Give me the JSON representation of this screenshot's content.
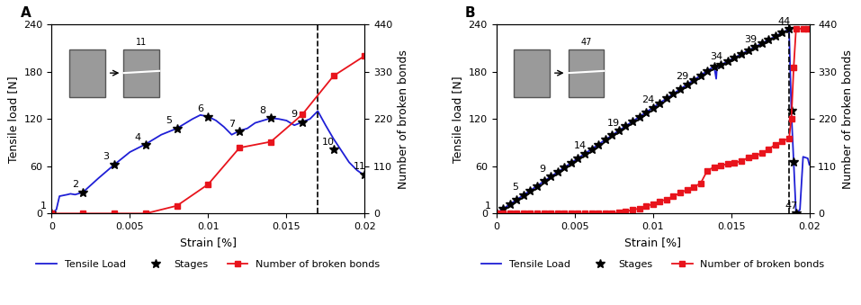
{
  "chart_data": [
    {
      "type": "line",
      "title": "A",
      "x_label": "Strain [%]",
      "y_label": "Tensile load [N]",
      "y2_label": "Number of broken bonds",
      "xlim": [
        0,
        0.02
      ],
      "xticks": [
        0,
        0.005,
        0.01,
        0.015,
        0.02
      ],
      "ylim": [
        0,
        240
      ],
      "yticks": [
        0,
        60,
        120,
        180,
        240
      ],
      "y2lim": [
        0,
        440
      ],
      "y2ticks": [
        0,
        110,
        220,
        330,
        440
      ],
      "legend": "below",
      "dashed_line_x": 0.017,
      "inset_label": "11",
      "series": [
        {
          "name": "Tensile Load",
          "color": "#1f1fd6",
          "type": "line",
          "marker": "none",
          "line_style": "solid",
          "x": [
            0,
            0.0003,
            0.0005,
            0.001,
            0.0012,
            0.0015,
            0.002,
            0.003,
            0.004,
            0.005,
            0.006,
            0.007,
            0.008,
            0.009,
            0.0095,
            0.01,
            0.0105,
            0.011,
            0.0115,
            0.012,
            0.0125,
            0.013,
            0.014,
            0.0145,
            0.015,
            0.0155,
            0.016,
            0.0165,
            0.017,
            0.0175,
            0.018,
            0.0185,
            0.019,
            0.0195,
            0.02
          ],
          "values": [
            0,
            5,
            22,
            24,
            25,
            24,
            27,
            45,
            62,
            78,
            88,
            100,
            108,
            120,
            125,
            123,
            118,
            110,
            100,
            105,
            108,
            115,
            121,
            120,
            118,
            112,
            116,
            120,
            130,
            112,
            95,
            80,
            65,
            55,
            48
          ]
        },
        {
          "name": "Stages",
          "color": "#000000",
          "type": "scatter",
          "marker": "star",
          "line_style": "none",
          "x": [
            0,
            0.002,
            0.004,
            0.006,
            0.008,
            0.01,
            0.012,
            0.014,
            0.016,
            0.018,
            0.02
          ],
          "values": [
            0,
            27,
            62,
            87,
            108,
            123,
            104,
            121,
            116,
            81,
            50
          ],
          "point_labels": [
            1,
            2,
            3,
            4,
            5,
            6,
            7,
            8,
            9,
            10,
            11
          ]
        },
        {
          "name": "Number of broken bonds",
          "color": "#e8141c",
          "type": "line",
          "marker": "square",
          "line_style": "solid",
          "axis": "y2",
          "x": [
            0,
            0.002,
            0.004,
            0.006,
            0.008,
            0.01,
            0.012,
            0.014,
            0.016,
            0.018,
            0.02
          ],
          "values": [
            0,
            0,
            0,
            0,
            18,
            68,
            153,
            167,
            230,
            320,
            367
          ]
        }
      ]
    },
    {
      "type": "line",
      "title": "B",
      "x_label": "Strain [%]",
      "y_label": "Tensile load [N]",
      "y2_label": "Number of broken bonds",
      "xlim": [
        0,
        0.02
      ],
      "xticks": [
        0,
        0.005,
        0.01,
        0.015,
        0.02
      ],
      "ylim": [
        0,
        240
      ],
      "yticks": [
        0,
        60,
        120,
        180,
        240
      ],
      "y2lim": [
        0,
        440
      ],
      "y2ticks": [
        0,
        110,
        220,
        330,
        440
      ],
      "legend": "below",
      "dashed_line_x": 0.0187,
      "inset_label": "47",
      "series": [
        {
          "name": "Tensile Load",
          "color": "#1f1fd6",
          "type": "line",
          "marker": "none",
          "line_style": "solid",
          "x": [
            0,
            0.01392,
            0.01405,
            0.0141,
            0.018705,
            0.01885,
            0.019,
            0.01915,
            0.0194,
            0.0196,
            0.0199,
            0.02
          ],
          "values": [
            0,
            186.9,
            171,
            186,
            234,
            130,
            65,
            0,
            5,
            72,
            70,
            62
          ]
        },
        {
          "name": "Stages",
          "color": "#000000",
          "type": "scatter",
          "marker": "star",
          "line_style": "none",
          "x": [
            0,
            0.000435,
            0.00087,
            0.001305,
            0.00174,
            0.002175,
            0.00261,
            0.003045,
            0.00348,
            0.003915,
            0.00435,
            0.004785,
            0.00522,
            0.005655,
            0.00609,
            0.006525,
            0.00696,
            0.007395,
            0.00783,
            0.008265,
            0.0087,
            0.009135,
            0.00957,
            0.010005,
            0.01044,
            0.010875,
            0.01131,
            0.011745,
            0.01218,
            0.012615,
            0.01305,
            0.013485,
            0.01392,
            0.014355,
            0.01479,
            0.015225,
            0.01566,
            0.016095,
            0.01653,
            0.016965,
            0.0174,
            0.017835,
            0.01827,
            0.018705,
            0.01885,
            0.019,
            0.01915
          ],
          "values": [
            0,
            5.8,
            11.7,
            17.5,
            23.4,
            29.2,
            35.0,
            40.9,
            46.7,
            52.6,
            58.4,
            64.3,
            70.1,
            75.9,
            81.8,
            87.6,
            93.5,
            99.3,
            105.1,
            111.0,
            116.8,
            122.7,
            128.5,
            134.3,
            140.2,
            146.0,
            151.9,
            157.7,
            163.6,
            169.4,
            175.2,
            181.1,
            186.9,
            188.7,
            193.2,
            197.7,
            202.3,
            206.8,
            211.4,
            215.9,
            220.4,
            225.0,
            229.5,
            234,
            130,
            65,
            0
          ],
          "point_labels": [
            1,
            null,
            null,
            null,
            5,
            null,
            null,
            null,
            9,
            null,
            null,
            null,
            null,
            14,
            null,
            null,
            null,
            null,
            19,
            null,
            null,
            null,
            null,
            24,
            null,
            null,
            null,
            null,
            29,
            null,
            null,
            null,
            null,
            34,
            null,
            null,
            null,
            null,
            39,
            null,
            null,
            null,
            null,
            44,
            null,
            null,
            47
          ]
        },
        {
          "name": "Number of broken bonds",
          "color": "#e8141c",
          "type": "line",
          "marker": "square",
          "line_style": "solid",
          "axis": "y2",
          "x": [
            0,
            0.000435,
            0.00087,
            0.001305,
            0.00174,
            0.002175,
            0.00261,
            0.003045,
            0.00348,
            0.003915,
            0.00435,
            0.004785,
            0.00522,
            0.005655,
            0.00609,
            0.006525,
            0.00696,
            0.007395,
            0.00783,
            0.008265,
            0.0087,
            0.009135,
            0.00957,
            0.010005,
            0.01044,
            0.010875,
            0.01131,
            0.011745,
            0.01218,
            0.012615,
            0.01305,
            0.013485,
            0.01392,
            0.014355,
            0.01479,
            0.015225,
            0.01566,
            0.016095,
            0.01653,
            0.016965,
            0.0174,
            0.017835,
            0.01827,
            0.018705,
            0.01885,
            0.019,
            0.01915,
            0.0196,
            0.0199
          ],
          "values": [
            0,
            0,
            0,
            0,
            0,
            0,
            0,
            0,
            0,
            0,
            0,
            0,
            0,
            0,
            0,
            0,
            0,
            0,
            2,
            5,
            8,
            12,
            17,
            22,
            28,
            33,
            40,
            48,
            55,
            62,
            70,
            100,
            108,
            112,
            115,
            118,
            122,
            130,
            135,
            140,
            150,
            160,
            168,
            175,
            220,
            340,
            430,
            430,
            430
          ]
        }
      ]
    }
  ]
}
